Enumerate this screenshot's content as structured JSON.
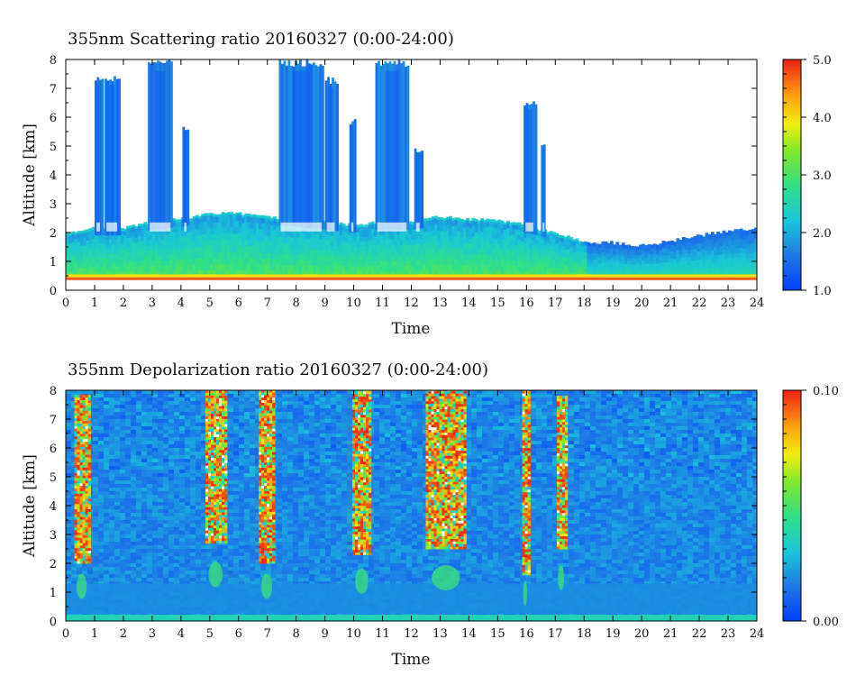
{
  "chart_data": [
    {
      "type": "heatmap",
      "title": "355nm Scattering ratio  20160327 (0:00-24:00)",
      "xlabel": "Time",
      "ylabel": "Altitude [km]",
      "xlim": [
        0,
        24
      ],
      "ylim": [
        0,
        8
      ],
      "x_ticks": [
        "0",
        "1",
        "2",
        "3",
        "4",
        "5",
        "6",
        "7",
        "8",
        "9",
        "10",
        "11",
        "12",
        "13",
        "14",
        "15",
        "16",
        "17",
        "18",
        "19",
        "20",
        "21",
        "22",
        "23",
        "24"
      ],
      "y_ticks": [
        "0",
        "1",
        "2",
        "3",
        "4",
        "5",
        "6",
        "7",
        "8"
      ],
      "colorbar": {
        "min": 1.0,
        "max": 5.0,
        "labels": [
          "1.0",
          "2.0",
          "3.0",
          "4.0",
          "5.0"
        ]
      },
      "features": {
        "boundary_layer_top_km": [
          [
            0,
            1.9
          ],
          [
            1,
            2.1
          ],
          [
            2,
            2.1
          ],
          [
            3,
            2.3
          ],
          [
            4,
            2.4
          ],
          [
            5,
            2.6
          ],
          [
            6,
            2.6
          ],
          [
            7,
            2.5
          ],
          [
            8,
            2.4
          ],
          [
            9,
            2.3
          ],
          [
            10,
            2.2
          ],
          [
            11,
            2.3
          ],
          [
            12,
            2.3
          ],
          [
            13,
            2.5
          ],
          [
            14,
            2.4
          ],
          [
            15,
            2.4
          ],
          [
            16,
            2.2
          ],
          [
            17,
            1.9
          ],
          [
            18,
            1.65
          ],
          [
            19,
            1.65
          ],
          [
            20,
            1.55
          ],
          [
            21,
            1.7
          ],
          [
            22,
            1.9
          ],
          [
            23,
            2.05
          ],
          [
            24,
            2.15
          ]
        ],
        "surface_layer_km": 0.4,
        "cloud_columns": [
          {
            "start_h": 1.0,
            "end_h": 1.25,
            "top_km": 7.5
          },
          {
            "start_h": 1.35,
            "end_h": 1.85,
            "top_km": 7.5
          },
          {
            "start_h": 2.85,
            "end_h": 3.7,
            "top_km": 8.0
          },
          {
            "start_h": 4.05,
            "end_h": 4.25,
            "top_km": 5.8
          },
          {
            "start_h": 7.4,
            "end_h": 8.95,
            "top_km": 8.0
          },
          {
            "start_h": 9.0,
            "end_h": 9.4,
            "top_km": 7.4
          },
          {
            "start_h": 9.85,
            "end_h": 10.05,
            "top_km": 6.0
          },
          {
            "start_h": 10.75,
            "end_h": 11.9,
            "top_km": 8.0
          },
          {
            "start_h": 12.1,
            "end_h": 12.35,
            "top_km": 5.0
          },
          {
            "start_h": 15.9,
            "end_h": 16.3,
            "top_km": 6.6
          },
          {
            "start_h": 16.5,
            "end_h": 16.65,
            "top_km": 5.2
          }
        ]
      }
    },
    {
      "type": "heatmap",
      "title": "355nm Depolarization ratio  20160327 (0:00-24:00)",
      "xlabel": "Time",
      "ylabel": "Altitude [km]",
      "xlim": [
        0,
        24
      ],
      "ylim": [
        0,
        8
      ],
      "x_ticks": [
        "0",
        "1",
        "2",
        "3",
        "4",
        "5",
        "6",
        "7",
        "8",
        "9",
        "10",
        "11",
        "12",
        "13",
        "14",
        "15",
        "16",
        "17",
        "18",
        "19",
        "20",
        "21",
        "22",
        "23",
        "24"
      ],
      "y_ticks": [
        "0",
        "1",
        "2",
        "3",
        "4",
        "5",
        "6",
        "7",
        "8"
      ],
      "colorbar": {
        "min": 0.0,
        "max": 0.1,
        "labels": [
          "0.00",
          "0.10"
        ]
      },
      "features": {
        "high_depol_columns": [
          {
            "start_h": 0.3,
            "end_h": 0.8,
            "bottom_km": 2.0,
            "top_km": 7.8
          },
          {
            "start_h": 4.85,
            "end_h": 5.55,
            "bottom_km": 2.7,
            "top_km": 8.0
          },
          {
            "start_h": 6.7,
            "end_h": 7.25,
            "bottom_km": 2.0,
            "top_km": 8.0
          },
          {
            "start_h": 9.95,
            "end_h": 10.6,
            "bottom_km": 2.3,
            "top_km": 8.0
          },
          {
            "start_h": 12.5,
            "end_h": 13.9,
            "bottom_km": 2.5,
            "top_km": 8.0
          },
          {
            "start_h": 15.85,
            "end_h": 16.05,
            "bottom_km": 1.6,
            "top_km": 8.0
          },
          {
            "start_h": 17.05,
            "end_h": 17.35,
            "bottom_km": 2.5,
            "top_km": 7.8
          }
        ]
      }
    }
  ]
}
